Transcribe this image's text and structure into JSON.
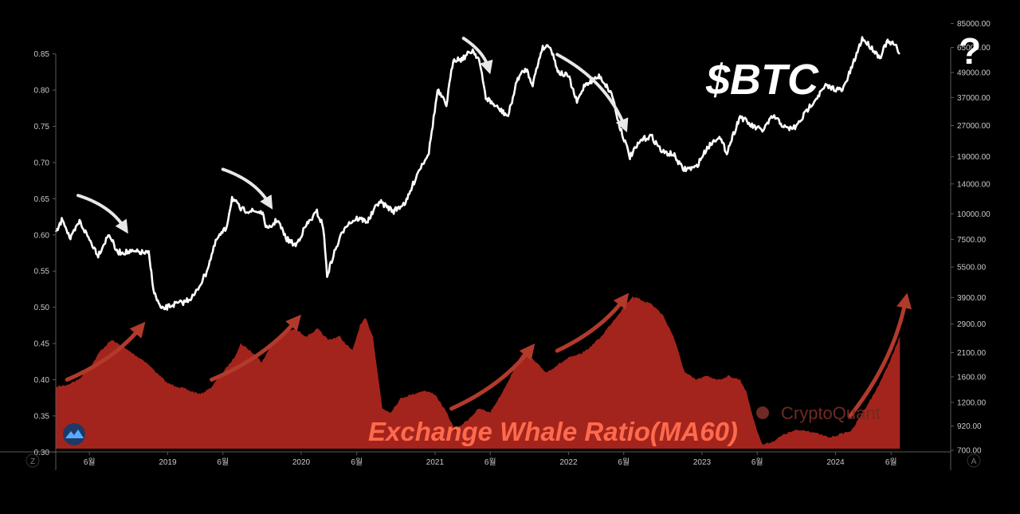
{
  "chart_data": {
    "type": "line+area",
    "title": "$BTC",
    "title_suffix": "?",
    "area_title": "Exchange Whale Ratio(MA60)",
    "watermark": "CryptoQuant",
    "corner_left": "Z",
    "corner_right": "A",
    "left_axis": {
      "ylim": [
        0.275,
        0.875
      ],
      "ticks": [
        "0.30",
        "0.35",
        "0.40",
        "0.45",
        "0.50",
        "0.55",
        "0.60",
        "0.65",
        "0.70",
        "0.75",
        "0.80",
        "0.85"
      ]
    },
    "right_axis": {
      "scale": "log",
      "ylim": [
        560,
        74000
      ],
      "ticks": [
        "700.00",
        "920.00",
        "1200.00",
        "1600.00",
        "2100.00",
        "2900.00",
        "3900.00",
        "5500.00",
        "7500.00",
        "10000.00",
        "14000.00",
        "19000.00",
        "27000.00",
        "37000.00",
        "49000.00",
        "65000.00",
        "85000.00"
      ]
    },
    "x_axis": {
      "type": "date",
      "range": [
        "2018-03-01",
        "2024-08-31"
      ],
      "ticks": [
        {
          "date": "2018-06-01",
          "label": "6월"
        },
        {
          "date": "2019-01-01",
          "label": "2019"
        },
        {
          "date": "2019-06-01",
          "label": "6월"
        },
        {
          "date": "2020-01-01",
          "label": "2020"
        },
        {
          "date": "2020-06-01",
          "label": "6월"
        },
        {
          "date": "2021-01-01",
          "label": "2021"
        },
        {
          "date": "2021-06-01",
          "label": "6월"
        },
        {
          "date": "2022-01-01",
          "label": "2022"
        },
        {
          "date": "2022-06-01",
          "label": "6월"
        },
        {
          "date": "2023-01-01",
          "label": "2023"
        },
        {
          "date": "2023-06-01",
          "label": "6월"
        },
        {
          "date": "2024-01-01",
          "label": "2024"
        },
        {
          "date": "2024-06-01",
          "label": "6월"
        }
      ]
    },
    "series": [
      {
        "name": "Exchange Whale Ratio(MA60)",
        "type": "area",
        "axis": "left",
        "color": "#a3241c",
        "points": [
          [
            "2018-03-01",
            0.39
          ],
          [
            "2018-04-01",
            0.393
          ],
          [
            "2018-05-01",
            0.4
          ],
          [
            "2018-06-01",
            0.415
          ],
          [
            "2018-07-01",
            0.44
          ],
          [
            "2018-08-01",
            0.455
          ],
          [
            "2018-09-01",
            0.445
          ],
          [
            "2018-10-01",
            0.435
          ],
          [
            "2018-11-01",
            0.425
          ],
          [
            "2018-12-01",
            0.41
          ],
          [
            "2019-01-01",
            0.395
          ],
          [
            "2019-02-01",
            0.39
          ],
          [
            "2019-03-01",
            0.385
          ],
          [
            "2019-04-01",
            0.38
          ],
          [
            "2019-05-01",
            0.39
          ],
          [
            "2019-06-01",
            0.41
          ],
          [
            "2019-07-01",
            0.43
          ],
          [
            "2019-07-20",
            0.45
          ],
          [
            "2019-08-15",
            0.44
          ],
          [
            "2019-09-15",
            0.425
          ],
          [
            "2019-10-15",
            0.45
          ],
          [
            "2019-11-15",
            0.465
          ],
          [
            "2019-12-15",
            0.47
          ],
          [
            "2020-01-15",
            0.46
          ],
          [
            "2020-02-15",
            0.47
          ],
          [
            "2020-03-15",
            0.455
          ],
          [
            "2020-04-15",
            0.46
          ],
          [
            "2020-05-01",
            0.45
          ],
          [
            "2020-05-20",
            0.44
          ],
          [
            "2020-06-10",
            0.475
          ],
          [
            "2020-06-25",
            0.485
          ],
          [
            "2020-07-15",
            0.46
          ],
          [
            "2020-08-10",
            0.36
          ],
          [
            "2020-09-01",
            0.355
          ],
          [
            "2020-10-01",
            0.375
          ],
          [
            "2020-11-01",
            0.38
          ],
          [
            "2020-12-01",
            0.385
          ],
          [
            "2021-01-01",
            0.38
          ],
          [
            "2021-02-01",
            0.355
          ],
          [
            "2021-02-25",
            0.33
          ],
          [
            "2021-04-01",
            0.345
          ],
          [
            "2021-05-01",
            0.36
          ],
          [
            "2021-06-01",
            0.355
          ],
          [
            "2021-07-01",
            0.38
          ],
          [
            "2021-08-01",
            0.41
          ],
          [
            "2021-09-01",
            0.44
          ],
          [
            "2021-10-01",
            0.425
          ],
          [
            "2021-11-01",
            0.41
          ],
          [
            "2021-12-01",
            0.42
          ],
          [
            "2022-01-01",
            0.43
          ],
          [
            "2022-02-01",
            0.435
          ],
          [
            "2022-03-01",
            0.445
          ],
          [
            "2022-04-01",
            0.46
          ],
          [
            "2022-05-01",
            0.48
          ],
          [
            "2022-06-01",
            0.5
          ],
          [
            "2022-06-25",
            0.515
          ],
          [
            "2022-07-20",
            0.51
          ],
          [
            "2022-08-15",
            0.505
          ],
          [
            "2022-09-15",
            0.49
          ],
          [
            "2022-10-15",
            0.46
          ],
          [
            "2022-11-15",
            0.41
          ],
          [
            "2022-12-15",
            0.4
          ],
          [
            "2023-01-15",
            0.405
          ],
          [
            "2023-02-15",
            0.4
          ],
          [
            "2023-03-15",
            0.405
          ],
          [
            "2023-04-15",
            0.4
          ],
          [
            "2023-05-01",
            0.385
          ],
          [
            "2023-05-25",
            0.34
          ],
          [
            "2023-06-15",
            0.31
          ],
          [
            "2023-07-15",
            0.315
          ],
          [
            "2023-08-15",
            0.325
          ],
          [
            "2023-09-15",
            0.33
          ],
          [
            "2023-10-15",
            0.33
          ],
          [
            "2023-11-15",
            0.325
          ],
          [
            "2023-12-15",
            0.32
          ],
          [
            "2024-01-15",
            0.325
          ],
          [
            "2024-02-15",
            0.33
          ],
          [
            "2024-03-15",
            0.355
          ],
          [
            "2024-04-15",
            0.38
          ],
          [
            "2024-05-15",
            0.41
          ],
          [
            "2024-06-10",
            0.44
          ],
          [
            "2024-06-25",
            0.46
          ]
        ]
      },
      {
        "name": "$BTC",
        "type": "line",
        "axis": "right",
        "color": "#ffffff",
        "points": [
          [
            "2018-03-01",
            8000
          ],
          [
            "2018-03-20",
            9500
          ],
          [
            "2018-04-10",
            7500
          ],
          [
            "2018-05-05",
            9200
          ],
          [
            "2018-06-01",
            7500
          ],
          [
            "2018-06-25",
            6300
          ],
          [
            "2018-07-25",
            8000
          ],
          [
            "2018-08-15",
            6500
          ],
          [
            "2018-09-15",
            6500
          ],
          [
            "2018-10-15",
            6500
          ],
          [
            "2018-11-10",
            6400
          ],
          [
            "2018-11-25",
            4100
          ],
          [
            "2018-12-15",
            3400
          ],
          [
            "2019-01-15",
            3600
          ],
          [
            "2019-02-15",
            3700
          ],
          [
            "2019-03-15",
            4000
          ],
          [
            "2019-04-15",
            5100
          ],
          [
            "2019-05-15",
            7500
          ],
          [
            "2019-06-10",
            8500
          ],
          [
            "2019-06-26",
            12000
          ],
          [
            "2019-07-20",
            10500
          ],
          [
            "2019-08-20",
            10300
          ],
          [
            "2019-09-15",
            10200
          ],
          [
            "2019-10-01",
            8300
          ],
          [
            "2019-10-28",
            9400
          ],
          [
            "2019-11-20",
            7600
          ],
          [
            "2019-12-17",
            7000
          ],
          [
            "2020-01-15",
            8800
          ],
          [
            "2020-02-13",
            10200
          ],
          [
            "2020-03-01",
            8700
          ],
          [
            "2020-03-12",
            5000
          ],
          [
            "2020-04-01",
            6500
          ],
          [
            "2020-05-01",
            8800
          ],
          [
            "2020-06-01",
            9500
          ],
          [
            "2020-07-01",
            9200
          ],
          [
            "2020-08-01",
            11500
          ],
          [
            "2020-09-10",
            10300
          ],
          [
            "2020-10-15",
            11500
          ],
          [
            "2020-11-15",
            16000
          ],
          [
            "2020-12-15",
            20000
          ],
          [
            "2021-01-08",
            40000
          ],
          [
            "2021-02-01",
            34000
          ],
          [
            "2021-02-20",
            57000
          ],
          [
            "2021-03-15",
            57000
          ],
          [
            "2021-04-14",
            63000
          ],
          [
            "2021-05-01",
            57000
          ],
          [
            "2021-05-20",
            37000
          ],
          [
            "2021-06-20",
            33000
          ],
          [
            "2021-07-20",
            30000
          ],
          [
            "2021-08-15",
            46000
          ],
          [
            "2021-09-07",
            51000
          ],
          [
            "2021-09-25",
            43000
          ],
          [
            "2021-10-20",
            64000
          ],
          [
            "2021-11-10",
            67000
          ],
          [
            "2021-12-05",
            49000
          ],
          [
            "2022-01-01",
            47000
          ],
          [
            "2022-01-24",
            35000
          ],
          [
            "2022-02-15",
            43000
          ],
          [
            "2022-03-28",
            47000
          ],
          [
            "2022-05-01",
            38000
          ],
          [
            "2022-05-15",
            29000
          ],
          [
            "2022-06-18",
            19000
          ],
          [
            "2022-07-20",
            23000
          ],
          [
            "2022-08-15",
            24000
          ],
          [
            "2022-09-15",
            20000
          ],
          [
            "2022-10-15",
            19500
          ],
          [
            "2022-11-10",
            16500
          ],
          [
            "2022-12-15",
            16800
          ],
          [
            "2023-01-15",
            21000
          ],
          [
            "2023-02-15",
            24000
          ],
          [
            "2023-03-10",
            20000
          ],
          [
            "2023-04-15",
            30000
          ],
          [
            "2023-05-15",
            27000
          ],
          [
            "2023-06-15",
            25500
          ],
          [
            "2023-07-15",
            30000
          ],
          [
            "2023-08-20",
            26000
          ],
          [
            "2023-09-15",
            26500
          ],
          [
            "2023-10-25",
            34000
          ],
          [
            "2023-12-05",
            42000
          ],
          [
            "2024-01-20",
            40000
          ],
          [
            "2024-02-15",
            52000
          ],
          [
            "2024-03-14",
            72000
          ],
          [
            "2024-04-15",
            63000
          ],
          [
            "2024-05-01",
            58000
          ],
          [
            "2024-05-20",
            69000
          ],
          [
            "2024-06-10",
            67000
          ],
          [
            "2024-06-25",
            61000
          ]
        ]
      }
    ],
    "annotations": [
      {
        "type": "white-arrow",
        "from": [
          "2018-05-01",
          12300
        ],
        "to": [
          "2018-09-15",
          8000
        ]
      },
      {
        "type": "white-arrow",
        "from": [
          "2019-06-01",
          16500
        ],
        "to": [
          "2019-10-15",
          10500
        ]
      },
      {
        "type": "white-arrow",
        "from": [
          "2021-03-20",
          72000
        ],
        "to": [
          "2021-06-01",
          48000
        ]
      },
      {
        "type": "white-arrow",
        "from": [
          "2021-12-01",
          60000
        ],
        "to": [
          "2022-06-10",
          25000
        ]
      },
      {
        "type": "red-arrow",
        "from": [
          "2018-04-01",
          0.4
        ],
        "to": [
          "2018-11-01",
          0.48
        ]
      },
      {
        "type": "red-arrow",
        "from": [
          "2019-05-01",
          0.4
        ],
        "to": [
          "2020-01-01",
          0.49
        ]
      },
      {
        "type": "red-arrow",
        "from": [
          "2021-02-15",
          0.36
        ],
        "to": [
          "2021-10-01",
          0.45
        ]
      },
      {
        "type": "red-arrow",
        "from": [
          "2021-12-01",
          0.44
        ],
        "to": [
          "2022-06-15",
          0.52
        ]
      },
      {
        "type": "red-arrow",
        "from": [
          "2024-02-10",
          0.35
        ],
        "to": [
          "2024-07-15",
          0.52
        ]
      }
    ],
    "colors": {
      "background": "#000000",
      "axis": "#5a5a5a",
      "tick_text": "#c9c9c9",
      "area_fill": "#a3241c",
      "btc_line": "#ffffff",
      "red_arrow": "#b23a2c",
      "white_arrow": "#e8e8e8",
      "ratio_title": "#ff6a4d"
    }
  }
}
